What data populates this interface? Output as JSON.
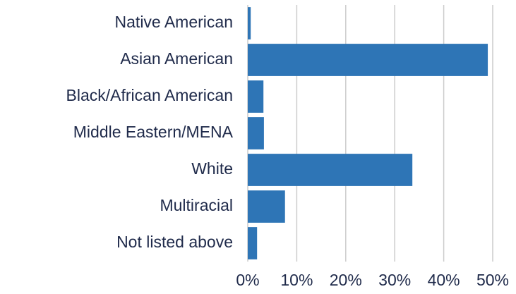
{
  "chart_data": {
    "type": "hbar",
    "categories": [
      "Native American",
      "Asian American",
      "Black/African American",
      "Middle Eastern/MENA",
      "White",
      "Multiracial",
      "Not listed above"
    ],
    "values": [
      0.6,
      49.0,
      3.2,
      3.3,
      33.6,
      7.6,
      1.9
    ],
    "color": "#2e75b6",
    "xlim": [
      0,
      50
    ],
    "xticks": [
      {
        "value": 0,
        "label": "0%"
      },
      {
        "value": 10,
        "label": "10%"
      },
      {
        "value": 20,
        "label": "20%"
      },
      {
        "value": 30,
        "label": "30%"
      },
      {
        "value": 40,
        "label": "40%"
      },
      {
        "value": 50,
        "label": "50%"
      }
    ],
    "grid": true
  }
}
